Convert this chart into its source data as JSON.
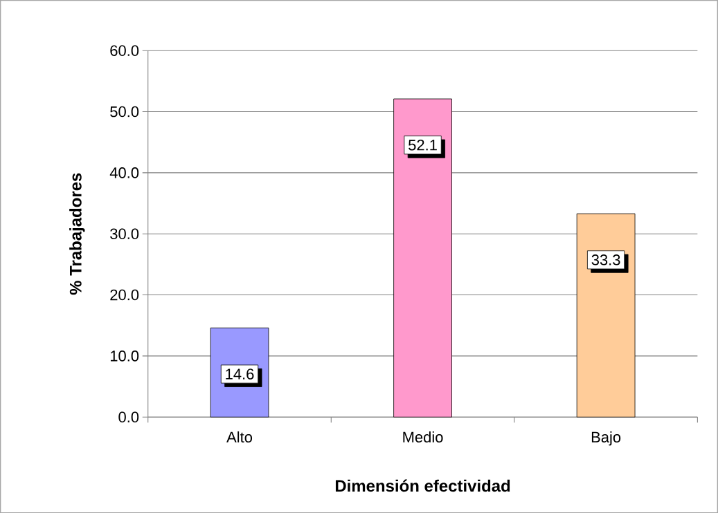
{
  "chart_data": {
    "type": "bar",
    "xlabel": "Dimensión efectividad",
    "ylabel": "% Trabajadores",
    "categories": [
      "Alto",
      "Medio",
      "Bajo"
    ],
    "values": [
      14.6,
      52.1,
      33.3
    ],
    "colors": [
      "#9999ff",
      "#ff99cc",
      "#ffcc99"
    ],
    "ylim": [
      0,
      60
    ],
    "yticks": [
      {
        "value": 0,
        "label": "0.0"
      },
      {
        "value": 10,
        "label": "10.0"
      },
      {
        "value": 20,
        "label": "20.0"
      },
      {
        "value": 30,
        "label": "30.0"
      },
      {
        "value": 40,
        "label": "40.0"
      },
      {
        "value": 50,
        "label": "50.0"
      },
      {
        "value": 60,
        "label": "60.0"
      }
    ],
    "grid": "y",
    "data_labels": true
  }
}
